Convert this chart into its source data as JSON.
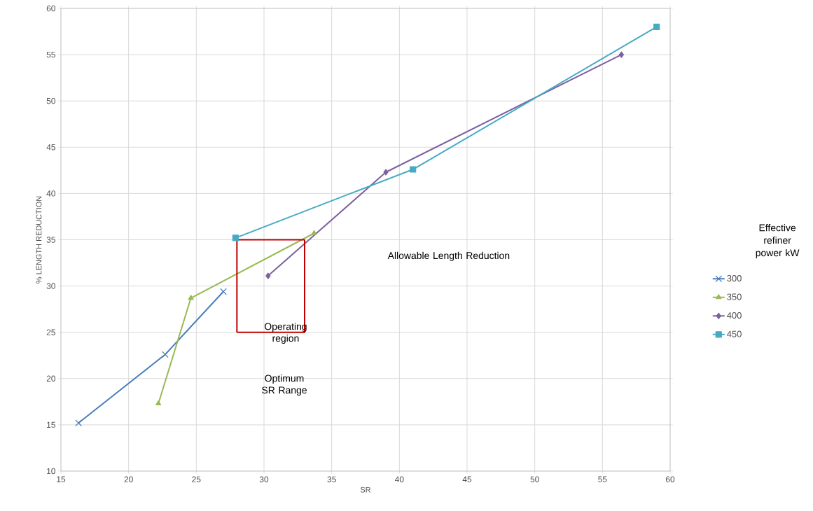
{
  "chart_data": {
    "type": "line",
    "xlabel": "SR",
    "ylabel": "% LENGTH REDUCTION",
    "legend_title": "Effective refiner power kW",
    "xlim": [
      15,
      60
    ],
    "xticks": [
      15,
      20,
      25,
      30,
      35,
      40,
      45,
      50,
      55,
      60
    ],
    "ylim": [
      10,
      60
    ],
    "yticks": [
      10,
      15,
      20,
      25,
      30,
      35,
      40,
      45,
      50,
      55,
      60
    ],
    "grid": true,
    "legend": "right",
    "annotations": [
      "Allowable Length Reduction",
      "Operating region",
      "Optimum SR Range"
    ],
    "series": [
      {
        "name": "300",
        "color": "#4a7ebb",
        "marker": "cross",
        "x": [
          16.3,
          22.7,
          27.0
        ],
        "values": [
          15.2,
          22.6,
          29.4
        ]
      },
      {
        "name": "350",
        "color": "#98b954",
        "marker": "triangle",
        "x": [
          22.2,
          24.6,
          33.7
        ],
        "values": [
          17.3,
          28.7,
          35.7
        ]
      },
      {
        "name": "400",
        "color": "#7d60a0",
        "marker": "diamond",
        "x": [
          30.3,
          39.0,
          56.4
        ],
        "values": [
          31.1,
          42.3,
          55.0
        ]
      },
      {
        "name": "450",
        "color": "#46aac5",
        "marker": "square",
        "x": [
          27.9,
          41.0,
          59.0
        ],
        "values": [
          35.2,
          42.6,
          58.0
        ]
      },
      {
        "color": "#c00000",
        "marker": "none",
        "x": [
          28,
          28,
          33
        ],
        "values": [
          25,
          35,
          35
        ]
      },
      {
        "color": "#c00000",
        "marker": "none",
        "x": [
          28,
          33,
          33
        ],
        "values": [
          25,
          25,
          35
        ]
      }
    ]
  }
}
